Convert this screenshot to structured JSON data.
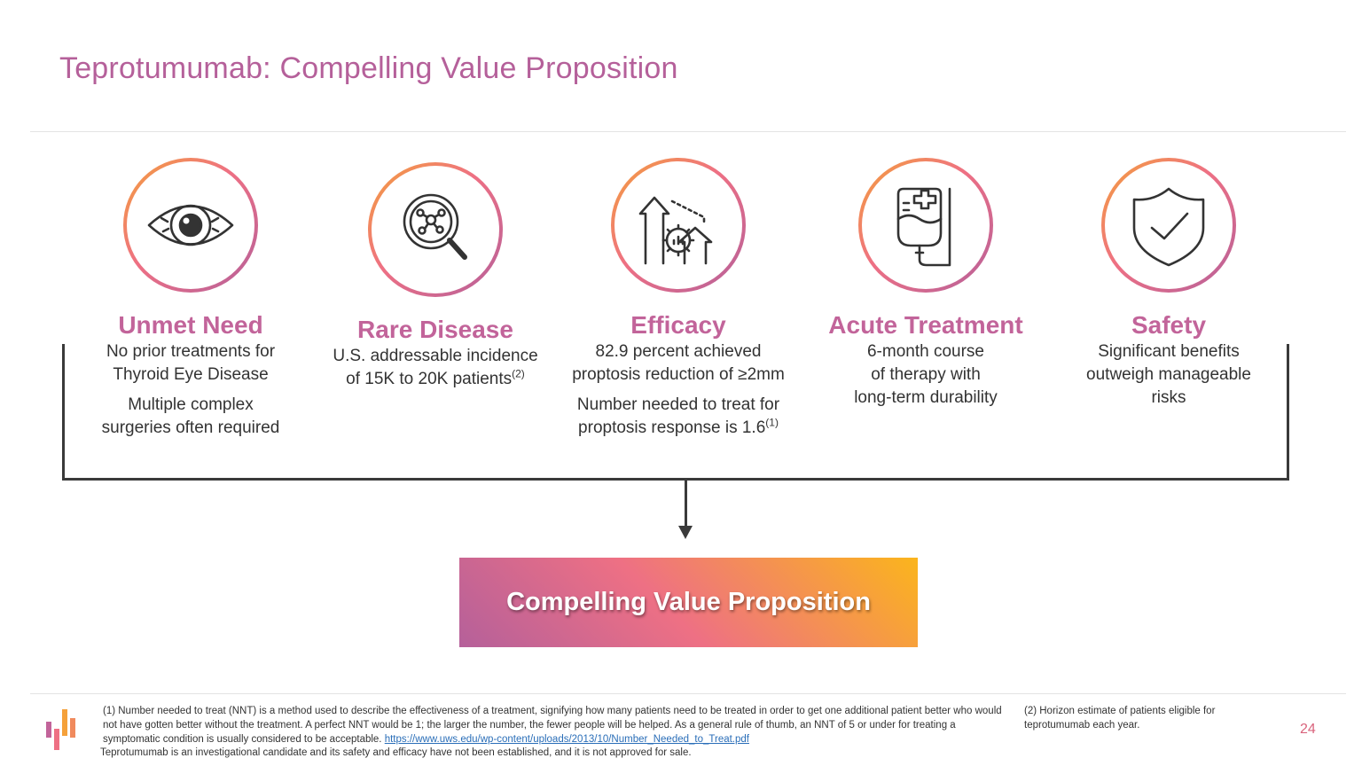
{
  "slide": {
    "title": "Teprotumumab:  Compelling Value Proposition",
    "page_number": "24"
  },
  "pillars": [
    {
      "title": "Unmet Need",
      "icon": "eye-icon",
      "lines_a": [
        "No prior treatments for",
        "Thyroid Eye Disease"
      ],
      "lines_b": [
        "Multiple complex",
        "surgeries often required"
      ]
    },
    {
      "title": "Rare Disease",
      "icon": "magnifier-cell-icon",
      "line1": "U.S. addressable incidence",
      "line2": "of 15K to 20K patients",
      "line2_sup": "(2)"
    },
    {
      "title": "Efficacy",
      "icon": "growth-gear-icon",
      "line1": "82.9 percent achieved",
      "line2": "proptosis reduction of ≥2mm",
      "line3": "Number needed to treat for",
      "line4": "proptosis response is 1.6",
      "line4_sup": "(1)"
    },
    {
      "title": "Acute Treatment",
      "icon": "iv-bag-icon",
      "lines": [
        "6-month course",
        "of therapy with",
        "long-term durability"
      ]
    },
    {
      "title": "Safety",
      "icon": "shield-check-icon",
      "lines": [
        "Significant benefits",
        "outweigh manageable",
        "risks"
      ]
    }
  ],
  "conclusion": {
    "label": "Compelling Value Proposition"
  },
  "footnotes": {
    "note1": "(1)  Number needed to treat (NNT) is a method used to describe the effectiveness of a treatment, signifying how many patients need to be treated in order to get one additional patient better who would not have gotten better without the treatment.  A perfect NNT would be 1; the larger the number, the fewer people will be helped.  As a general rule of thumb, an NNT of 5 or under for treating a symptomatic condition is usually considered to be acceptable.",
    "note1_link": "https://www.uws.edu/wp-content/uploads/2013/10/Number_Needed_to_Treat.pdf",
    "note2": "(2)  Horizon estimate of patients eligible for teprotumumab each year.",
    "disclaimer": "Teprotumumab is an investigational candidate and its safety and efficacy have not been established, and it is not approved for sale."
  },
  "colors": {
    "title": "#b5609a",
    "pillar_title": "#c2649a",
    "gradient_start": "#b5609a",
    "gradient_mid": "#ee7084",
    "gradient_end": "#fbb51c",
    "link": "#2a6eb8"
  }
}
